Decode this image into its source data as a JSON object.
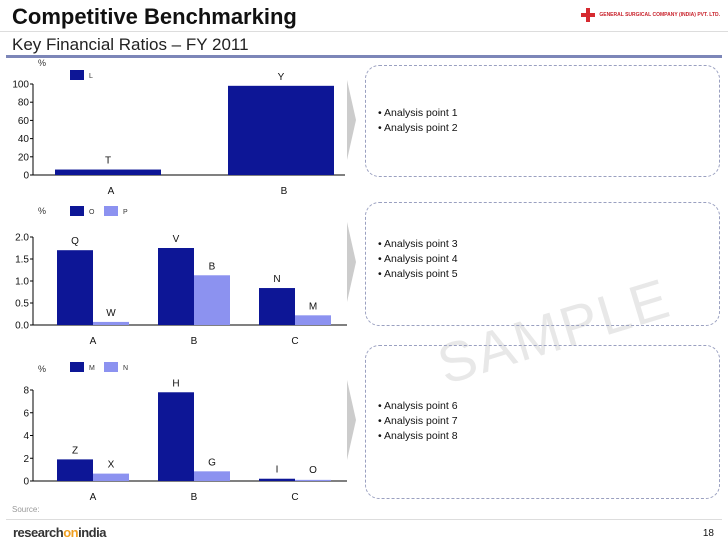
{
  "header": {
    "title": "Competitive Benchmarking",
    "subtitle": "Key Financial Ratios – FY 2011",
    "logo_text": "GENERAL SURGICAL COMPANY (INDIA) PVT. LTD."
  },
  "colors": {
    "dark": "#0d1696",
    "light": "#8c92f0"
  },
  "chart_data": [
    {
      "type": "bar",
      "unit": "%",
      "categories": [
        "A",
        "B"
      ],
      "ylim": [
        0,
        100
      ],
      "yticks": [
        "0",
        "20",
        "40",
        "60",
        "80",
        "100"
      ],
      "series": [
        {
          "name": "L",
          "values": [
            6,
            98
          ],
          "labels": [
            "T",
            "Y"
          ]
        }
      ]
    },
    {
      "type": "bar",
      "unit": "%",
      "categories": [
        "A",
        "B",
        "C"
      ],
      "ylim": [
        0,
        2
      ],
      "yticks": [
        "0.0",
        "0.5",
        "1.0",
        "1.5",
        "2.0"
      ],
      "series": [
        {
          "name": "O",
          "values": [
            1.7,
            1.75,
            0.84
          ],
          "labels": [
            "Q",
            "V",
            "N"
          ]
        },
        {
          "name": "P",
          "values": [
            0.07,
            1.13,
            0.22
          ],
          "labels": [
            "W",
            "B",
            "M"
          ]
        }
      ]
    },
    {
      "type": "bar",
      "unit": "%",
      "categories": [
        "A",
        "B",
        "C"
      ],
      "ylim": [
        0,
        8
      ],
      "yticks": [
        "0",
        "2",
        "4",
        "6",
        "8"
      ],
      "series": [
        {
          "name": "M",
          "values": [
            1.9,
            7.8,
            0.2
          ],
          "labels": [
            "Z",
            "H",
            "I"
          ]
        },
        {
          "name": "N",
          "values": [
            0.65,
            0.85,
            0.1
          ],
          "labels": [
            "X",
            "G",
            "O"
          ]
        }
      ]
    }
  ],
  "analysis": [
    [
      "Analysis point 1",
      "Analysis point 2"
    ],
    [
      "Analysis point 3",
      "Analysis point 4",
      "Analysis point 5"
    ],
    [
      "Analysis point 6",
      "Analysis point 7",
      "Analysis point 8"
    ]
  ],
  "watermark": "SAMPLE",
  "footer": {
    "source": "Source:",
    "brand_a": "research",
    "brand_b": "on",
    "brand_c": "india",
    "page": "18"
  }
}
